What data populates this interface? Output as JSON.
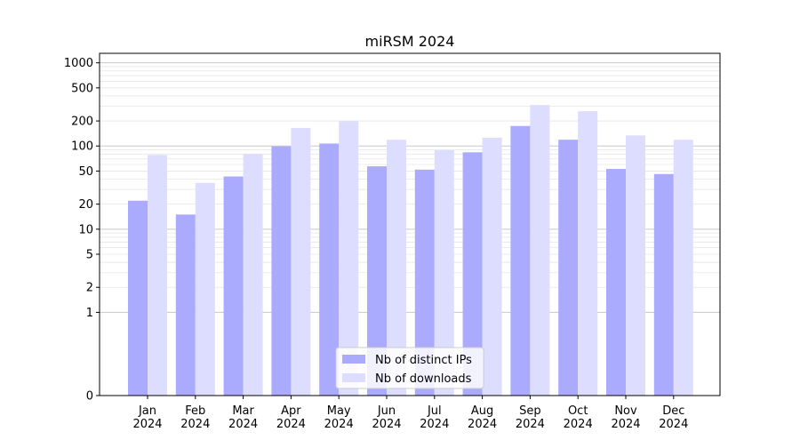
{
  "chart_data": {
    "type": "bar",
    "title": "miRSM 2024",
    "xlabel": "",
    "ylabel": "",
    "y_scale": "symlog",
    "ylim": [
      0,
      1300
    ],
    "y_ticks": [
      0,
      1,
      2,
      5,
      10,
      20,
      50,
      100,
      200,
      500,
      1000
    ],
    "y_tick_labels": [
      "0",
      "1",
      "2",
      "5",
      "10",
      "20",
      "50",
      "100",
      "200",
      "500",
      "1000"
    ],
    "categories": [
      "Jan\n2024",
      "Feb\n2024",
      "Mar\n2024",
      "Apr\n2024",
      "May\n2024",
      "Jun\n2024",
      "Jul\n2024",
      "Aug\n2024",
      "Sep\n2024",
      "Oct\n2024",
      "Nov\n2024",
      "Dec\n2024"
    ],
    "series": [
      {
        "name": "Nb of distinct IPs",
        "color": "#aaaaff",
        "values": [
          22,
          15,
          43,
          99,
          107,
          57,
          52,
          84,
          174,
          119,
          53,
          46
        ]
      },
      {
        "name": "Nb of downloads",
        "color": "#ddddff",
        "values": [
          78,
          36,
          80,
          165,
          198,
          119,
          89,
          126,
          311,
          262,
          134,
          119
        ]
      }
    ],
    "grid": true,
    "legend": "lower-center"
  }
}
